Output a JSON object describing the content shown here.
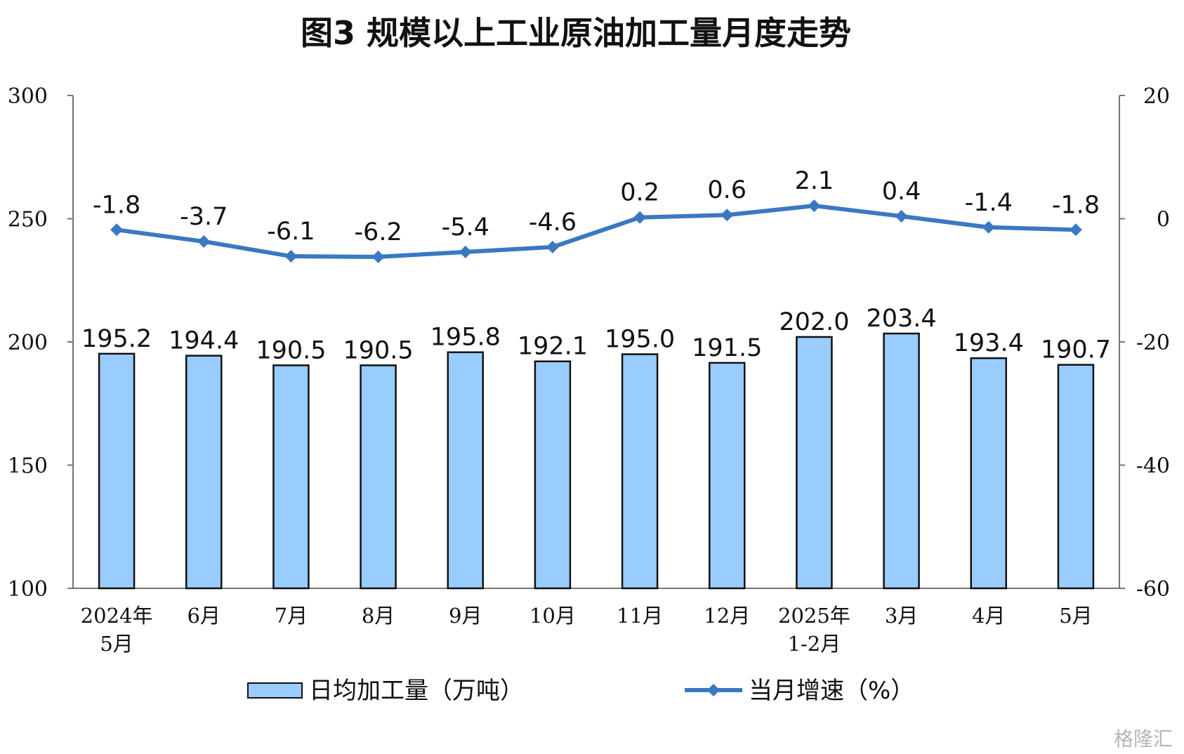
{
  "chart_data": {
    "type": "bar+line",
    "title": "图3  规模以上工业原油加工量月度走势",
    "categories": [
      [
        "2024年",
        "5月"
      ],
      [
        "6月"
      ],
      [
        "7月"
      ],
      [
        "8月"
      ],
      [
        "9月"
      ],
      [
        "10月"
      ],
      [
        "11月"
      ],
      [
        "12月"
      ],
      [
        "2025年",
        "1-2月"
      ],
      [
        "3月"
      ],
      [
        "4月"
      ],
      [
        "5月"
      ]
    ],
    "series": [
      {
        "name": "日均加工量（万吨）",
        "type": "bar",
        "axis": "left",
        "values": [
          195.2,
          194.4,
          190.5,
          190.5,
          195.8,
          192.1,
          195.0,
          191.5,
          202.0,
          203.4,
          193.4,
          190.7
        ],
        "labels": [
          "195.2",
          "194.4",
          "190.5",
          "190.5",
          "195.8",
          "192.1",
          "195.0",
          "191.5",
          "202.0",
          "203.4",
          "193.4",
          "190.7"
        ],
        "color": "#99CCFF",
        "stroke": "#111111"
      },
      {
        "name": "当月增速（%）",
        "type": "line",
        "axis": "right",
        "values": [
          -1.8,
          -3.7,
          -6.1,
          -6.2,
          -5.4,
          -4.6,
          0.2,
          0.6,
          2.1,
          0.4,
          -1.4,
          -1.8
        ],
        "labels": [
          "-1.8",
          "-3.7",
          "-6.1",
          "-6.2",
          "-5.4",
          "-4.6",
          "0.2",
          "0.6",
          "2.1",
          "0.4",
          "-1.4",
          "-1.8"
        ],
        "color": "#3A78C2",
        "marker": "diamond"
      }
    ],
    "y_left": {
      "min": 100,
      "max": 300,
      "ticks": [
        "100",
        "150",
        "200",
        "250",
        "300"
      ]
    },
    "y_right": {
      "min": -60,
      "max": 20,
      "ticks": [
        "-60",
        "-40",
        "-20",
        "0",
        "20"
      ]
    },
    "grid": false,
    "legend_position": "bottom"
  },
  "watermark": "格隆汇"
}
